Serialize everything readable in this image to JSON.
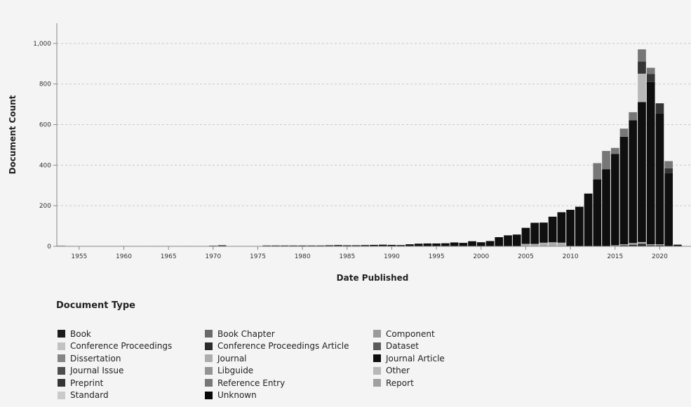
{
  "chart_data": {
    "type": "bar",
    "stacked": true,
    "xlabel": "Date Published",
    "ylabel": "Document Count",
    "ylim": [
      0,
      1100
    ],
    "xlim": [
      1952.5,
      2023.5
    ],
    "x_ticks": [
      1955,
      1960,
      1965,
      1970,
      1975,
      1980,
      1985,
      1990,
      1995,
      2000,
      2005,
      2010,
      2015,
      2020
    ],
    "y_ticks": [
      0,
      200,
      400,
      600,
      800,
      1000
    ],
    "y_tick_labels": [
      "0",
      "200",
      "400",
      "600",
      "800",
      "1,000"
    ],
    "grid": "horizontal dashed",
    "legend_title": "Document Type",
    "legend_position": "bottom",
    "x": [
      1953,
      1954,
      1955,
      1956,
      1957,
      1958,
      1959,
      1960,
      1961,
      1962,
      1963,
      1964,
      1965,
      1966,
      1967,
      1968,
      1969,
      1970,
      1971,
      1972,
      1973,
      1974,
      1975,
      1976,
      1977,
      1978,
      1979,
      1980,
      1981,
      1982,
      1983,
      1984,
      1985,
      1986,
      1987,
      1988,
      1989,
      1990,
      1991,
      1992,
      1993,
      1994,
      1995,
      1996,
      1997,
      1998,
      1999,
      2000,
      2001,
      2002,
      2003,
      2004,
      2005,
      2006,
      2007,
      2008,
      2009,
      2010,
      2011,
      2012,
      2013,
      2014,
      2015,
      2016,
      2017,
      2018,
      2019,
      2020,
      2021,
      2022
    ],
    "series": [
      {
        "name": "Book",
        "color": "#1c1c1c",
        "values": [
          0,
          0,
          0,
          0,
          0,
          0,
          0,
          0,
          0,
          0,
          0,
          0,
          0,
          0,
          0,
          0,
          0,
          0,
          0,
          0,
          0,
          0,
          0,
          0,
          0,
          0,
          0,
          0,
          0,
          0,
          0,
          0,
          0,
          0,
          0,
          0,
          0,
          0,
          0,
          0,
          0,
          0,
          0,
          0,
          0,
          0,
          0,
          0,
          0,
          0,
          0,
          0,
          0,
          0,
          0,
          0,
          0,
          0,
          0,
          0,
          0,
          0,
          0,
          0,
          0,
          5,
          0,
          0,
          0,
          0
        ]
      },
      {
        "name": "Book Chapter",
        "color": "#6a6a6a",
        "values": [
          0,
          0,
          0,
          0,
          0,
          0,
          0,
          0,
          0,
          0,
          0,
          0,
          0,
          0,
          0,
          0,
          0,
          0,
          0,
          0,
          0,
          0,
          0,
          0,
          0,
          0,
          0,
          0,
          0,
          0,
          0,
          0,
          0,
          0,
          0,
          0,
          0,
          0,
          0,
          0,
          0,
          0,
          0,
          0,
          0,
          0,
          0,
          0,
          0,
          0,
          0,
          0,
          0,
          0,
          0,
          0,
          0,
          0,
          0,
          0,
          0,
          0,
          0,
          0,
          0,
          0,
          0,
          0,
          0,
          0
        ]
      },
      {
        "name": "Component",
        "color": "#9a9a9a",
        "values": [
          0,
          0,
          0,
          0,
          0,
          0,
          0,
          0,
          0,
          0,
          0,
          0,
          0,
          0,
          0,
          0,
          0,
          0,
          0,
          0,
          0,
          0,
          0,
          0,
          0,
          0,
          0,
          0,
          0,
          0,
          0,
          0,
          0,
          0,
          0,
          0,
          0,
          0,
          0,
          0,
          0,
          0,
          0,
          0,
          0,
          0,
          0,
          0,
          0,
          0,
          0,
          0,
          0,
          0,
          0,
          0,
          0,
          0,
          0,
          0,
          0,
          0,
          0,
          0,
          0,
          0,
          0,
          0,
          0,
          0
        ]
      },
      {
        "name": "Conference Proceedings",
        "color": "#c2c2c2",
        "values": [
          0,
          0,
          0,
          0,
          0,
          0,
          0,
          0,
          0,
          0,
          0,
          0,
          0,
          0,
          0,
          0,
          0,
          0,
          0,
          0,
          0,
          0,
          0,
          0,
          0,
          0,
          0,
          0,
          0,
          0,
          0,
          0,
          0,
          0,
          0,
          0,
          0,
          0,
          0,
          0,
          0,
          0,
          0,
          0,
          0,
          0,
          0,
          0,
          0,
          0,
          0,
          0,
          0,
          0,
          0,
          0,
          0,
          0,
          0,
          0,
          0,
          0,
          0,
          0,
          0,
          0,
          0,
          0,
          0,
          0
        ]
      },
      {
        "name": "Conference Proceedings Article",
        "color": "#2c2c2c",
        "values": [
          0,
          0,
          0,
          0,
          0,
          0,
          0,
          0,
          0,
          0,
          0,
          0,
          0,
          0,
          0,
          0,
          0,
          0,
          0,
          0,
          0,
          0,
          0,
          0,
          0,
          0,
          0,
          0,
          0,
          0,
          0,
          0,
          0,
          0,
          0,
          0,
          0,
          0,
          0,
          0,
          0,
          0,
          0,
          0,
          0,
          0,
          0,
          0,
          0,
          0,
          0,
          0,
          0,
          0,
          0,
          0,
          0,
          0,
          0,
          0,
          0,
          0,
          0,
          5,
          8,
          8,
          5,
          5,
          0,
          0
        ]
      },
      {
        "name": "Dataset",
        "color": "#5a5a5a",
        "values": [
          0,
          0,
          0,
          0,
          0,
          0,
          0,
          0,
          0,
          0,
          0,
          0,
          0,
          0,
          0,
          0,
          0,
          0,
          0,
          0,
          0,
          0,
          0,
          0,
          0,
          0,
          0,
          0,
          0,
          0,
          0,
          0,
          0,
          0,
          0,
          0,
          0,
          0,
          0,
          0,
          0,
          0,
          0,
          0,
          0,
          0,
          0,
          0,
          0,
          0,
          0,
          0,
          0,
          0,
          0,
          0,
          0,
          0,
          0,
          0,
          0,
          0,
          0,
          0,
          0,
          0,
          0,
          0,
          0,
          0
        ]
      },
      {
        "name": "Dissertation",
        "color": "#858585",
        "values": [
          0,
          0,
          0,
          0,
          0,
          0,
          0,
          0,
          0,
          0,
          0,
          0,
          0,
          0,
          0,
          0,
          0,
          0,
          0,
          0,
          0,
          0,
          0,
          0,
          0,
          0,
          0,
          0,
          0,
          0,
          0,
          0,
          0,
          0,
          0,
          0,
          0,
          0,
          0,
          0,
          0,
          0,
          0,
          0,
          0,
          0,
          0,
          0,
          0,
          0,
          0,
          0,
          0,
          0,
          0,
          0,
          0,
          0,
          0,
          0,
          0,
          0,
          0,
          0,
          0,
          0,
          0,
          0,
          0,
          0
        ]
      },
      {
        "name": "Journal",
        "color": "#adadad",
        "values": [
          4,
          2,
          1,
          1,
          1,
          1,
          1,
          2,
          1,
          1,
          2,
          2,
          2,
          1,
          2,
          1,
          1,
          2,
          1,
          1,
          1,
          1,
          1,
          2,
          1,
          1,
          1,
          1,
          1,
          0,
          0,
          0,
          0,
          0,
          0,
          0,
          0,
          0,
          0,
          0,
          0,
          0,
          0,
          0,
          0,
          0,
          0,
          0,
          0,
          0,
          0,
          0,
          12,
          12,
          18,
          20,
          18,
          0,
          0,
          0,
          0,
          0,
          5,
          5,
          8,
          8,
          5,
          5,
          0,
          0
        ]
      },
      {
        "name": "Journal Article",
        "color": "#0f0f0f",
        "values": [
          0,
          0,
          0,
          0,
          0,
          0,
          0,
          0,
          0,
          0,
          0,
          0,
          0,
          0,
          0,
          0,
          0,
          1,
          4,
          0,
          0,
          0,
          0,
          2,
          3,
          3,
          3,
          3,
          3,
          4,
          5,
          6,
          5,
          5,
          6,
          7,
          8,
          7,
          6,
          10,
          13,
          14,
          14,
          15,
          19,
          17,
          25,
          20,
          26,
          45,
          54,
          58,
          79,
          104,
          99,
          126,
          150,
          180,
          195,
          260,
          330,
          380,
          450,
          530,
          605,
          690,
          800,
          645,
          360,
          8
        ]
      },
      {
        "name": "Journal Issue",
        "color": "#4e4e4e",
        "values": [
          0,
          0,
          0,
          0,
          0,
          0,
          0,
          0,
          0,
          0,
          0,
          0,
          0,
          0,
          0,
          0,
          0,
          0,
          0,
          0,
          0,
          0,
          0,
          0,
          0,
          0,
          0,
          0,
          0,
          0,
          0,
          0,
          0,
          0,
          0,
          0,
          0,
          0,
          0,
          0,
          0,
          0,
          0,
          0,
          0,
          0,
          0,
          0,
          0,
          0,
          0,
          0,
          0,
          0,
          0,
          0,
          0,
          0,
          0,
          0,
          0,
          0,
          0,
          0,
          0,
          0,
          0,
          0,
          0,
          0
        ]
      },
      {
        "name": "Libguide",
        "color": "#939393",
        "values": [
          0,
          0,
          0,
          0,
          0,
          0,
          0,
          0,
          0,
          0,
          0,
          0,
          0,
          0,
          0,
          0,
          0,
          0,
          0,
          0,
          0,
          0,
          0,
          0,
          0,
          0,
          0,
          0,
          0,
          0,
          0,
          0,
          0,
          0,
          0,
          0,
          0,
          0,
          0,
          0,
          0,
          0,
          0,
          0,
          0,
          0,
          0,
          0,
          0,
          0,
          0,
          0,
          0,
          0,
          0,
          0,
          0,
          0,
          0,
          0,
          0,
          0,
          0,
          0,
          0,
          0,
          0,
          0,
          0,
          0
        ]
      },
      {
        "name": "Other",
        "color": "#b8b8b8",
        "values": [
          0,
          0,
          0,
          0,
          0,
          0,
          0,
          0,
          0,
          0,
          0,
          0,
          0,
          0,
          0,
          0,
          0,
          0,
          0,
          0,
          0,
          0,
          0,
          0,
          0,
          0,
          0,
          0,
          0,
          0,
          0,
          0,
          0,
          0,
          0,
          0,
          0,
          0,
          0,
          0,
          0,
          0,
          0,
          0,
          0,
          0,
          0,
          0,
          0,
          0,
          0,
          0,
          0,
          0,
          0,
          0,
          0,
          0,
          0,
          0,
          0,
          0,
          0,
          0,
          0,
          140,
          0,
          0,
          0,
          0
        ]
      },
      {
        "name": "Preprint",
        "color": "#353535",
        "values": [
          0,
          0,
          0,
          0,
          0,
          0,
          0,
          0,
          0,
          0,
          0,
          0,
          0,
          0,
          0,
          0,
          0,
          0,
          0,
          0,
          0,
          0,
          0,
          0,
          0,
          0,
          0,
          0,
          0,
          0,
          0,
          0,
          0,
          0,
          0,
          0,
          0,
          0,
          0,
          0,
          0,
          0,
          0,
          0,
          0,
          0,
          0,
          0,
          0,
          0,
          0,
          0,
          0,
          0,
          0,
          0,
          0,
          0,
          0,
          0,
          0,
          0,
          0,
          0,
          0,
          60,
          40,
          50,
          25,
          0
        ]
      },
      {
        "name": "Reference Entry",
        "color": "#777777",
        "values": [
          0,
          0,
          0,
          0,
          0,
          0,
          0,
          0,
          0,
          0,
          0,
          0,
          0,
          0,
          0,
          0,
          0,
          0,
          0,
          0,
          0,
          0,
          0,
          0,
          0,
          0,
          0,
          0,
          0,
          0,
          0,
          0,
          0,
          0,
          0,
          0,
          0,
          0,
          0,
          0,
          0,
          0,
          0,
          0,
          0,
          0,
          0,
          0,
          0,
          0,
          0,
          0,
          0,
          0,
          0,
          0,
          0,
          0,
          0,
          0,
          80,
          90,
          30,
          40,
          40,
          60,
          30,
          0,
          35,
          0
        ]
      },
      {
        "name": "Report",
        "color": "#a0a0a0",
        "values": [
          0,
          0,
          0,
          0,
          0,
          0,
          0,
          0,
          0,
          0,
          0,
          0,
          0,
          0,
          0,
          0,
          0,
          0,
          0,
          0,
          0,
          0,
          0,
          0,
          0,
          0,
          0,
          0,
          0,
          0,
          0,
          0,
          0,
          0,
          0,
          0,
          0,
          0,
          0,
          0,
          0,
          0,
          0,
          0,
          0,
          0,
          0,
          0,
          0,
          0,
          0,
          0,
          0,
          0,
          0,
          0,
          0,
          0,
          0,
          0,
          0,
          0,
          0,
          0,
          0,
          0,
          0,
          0,
          0,
          0
        ]
      },
      {
        "name": "Standard",
        "color": "#cacaca",
        "values": [
          0,
          0,
          0,
          0,
          0,
          0,
          0,
          0,
          0,
          0,
          0,
          0,
          0,
          0,
          0,
          0,
          0,
          0,
          0,
          0,
          0,
          0,
          0,
          0,
          0,
          0,
          0,
          0,
          0,
          0,
          0,
          0,
          0,
          0,
          0,
          0,
          0,
          0,
          0,
          0,
          0,
          0,
          0,
          0,
          0,
          0,
          0,
          0,
          0,
          0,
          0,
          0,
          0,
          0,
          0,
          0,
          0,
          0,
          0,
          0,
          0,
          0,
          0,
          0,
          0,
          0,
          0,
          0,
          0,
          0
        ]
      },
      {
        "name": "Unknown",
        "color": "#080808",
        "values": [
          0,
          0,
          0,
          0,
          0,
          0,
          0,
          0,
          0,
          0,
          0,
          0,
          0,
          0,
          0,
          0,
          0,
          0,
          0,
          0,
          0,
          0,
          0,
          0,
          0,
          0,
          0,
          0,
          0,
          0,
          0,
          0,
          0,
          0,
          0,
          0,
          0,
          0,
          0,
          0,
          0,
          0,
          0,
          0,
          0,
          0,
          0,
          0,
          0,
          0,
          0,
          0,
          0,
          0,
          0,
          0,
          0,
          0,
          0,
          0,
          0,
          0,
          0,
          0,
          0,
          0,
          0,
          0,
          0,
          0
        ]
      }
    ]
  }
}
